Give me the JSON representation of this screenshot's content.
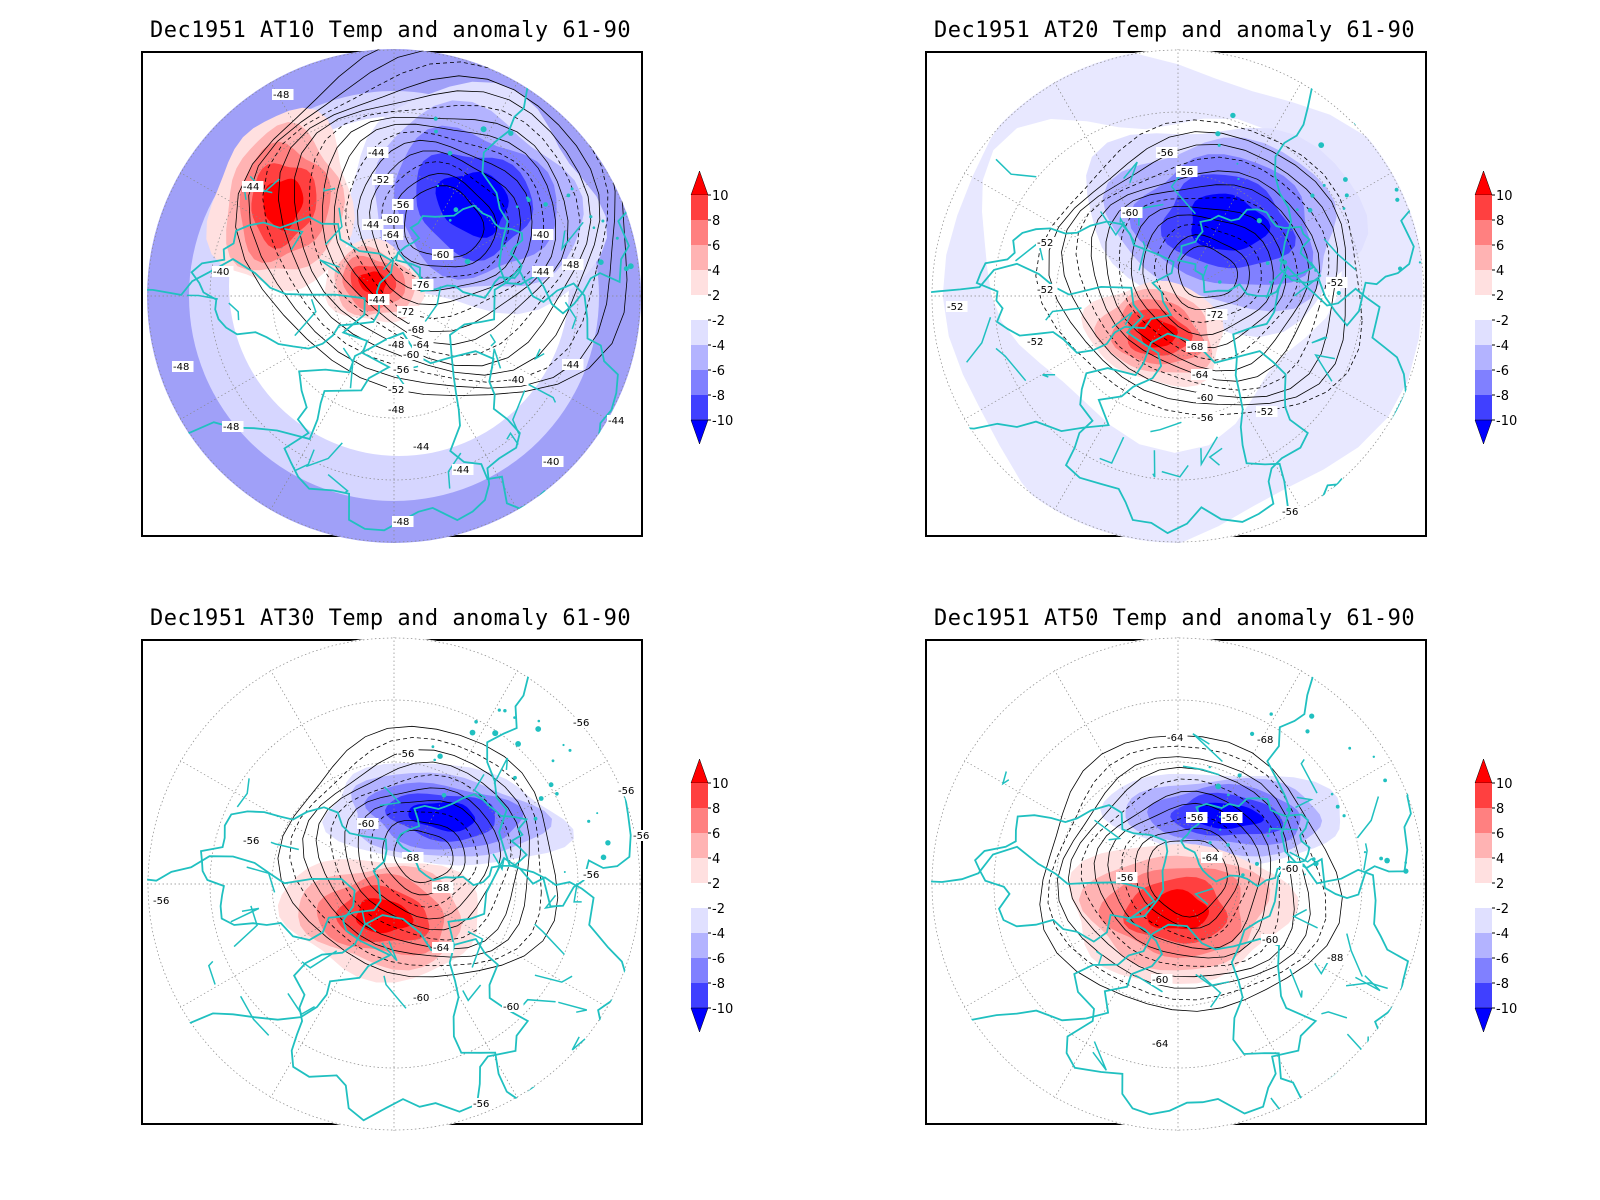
{
  "colors": {
    "coastline": "#20c0c0",
    "contour": "#000000",
    "grid": "#888888",
    "anom_pos": [
      "#ffe0e0",
      "#ffb3b3",
      "#ff8080",
      "#ff4040",
      "#ff0000"
    ],
    "anom_neg": [
      "#e0e0ff",
      "#b3b3ff",
      "#8080ff",
      "#4040ff",
      "#0000ff"
    ]
  },
  "colorbar": {
    "levels": [
      "10",
      "8",
      "6",
      "4",
      "2",
      "-2",
      "-4",
      "-6",
      "-8",
      "-10"
    ],
    "colors": [
      "#ff0000",
      "#ff4040",
      "#ff8080",
      "#ffb3b3",
      "#ffe0e0",
      "#ffffff",
      "#e0e0ff",
      "#b3b3ff",
      "#8080ff",
      "#4040ff",
      "#0000ff"
    ]
  },
  "panels": [
    {
      "title": "Dec1951 AT10 Temp and anomaly 61-90",
      "contour_labels": [
        "-48",
        "-44",
        "-44",
        "-44",
        "-40",
        "-44",
        "-48",
        "-52",
        "-56",
        "-60",
        "-64",
        "-60",
        "-76",
        "-72",
        "-68",
        "-64",
        "-60",
        "-56",
        "-52",
        "-48",
        "-44",
        "-40",
        "-44",
        "-48",
        "-44",
        "-40",
        "-40",
        "-44",
        "-48",
        "-48",
        "-48",
        "-44"
      ]
    },
    {
      "title": "Dec1951 AT20 Temp and anomaly 61-90",
      "contour_labels": [
        "-56",
        "-56",
        "-60",
        "-52",
        "-52",
        "-52",
        "-52",
        "-72",
        "-68",
        "-64",
        "-60",
        "-56",
        "-52",
        "-52",
        "-56"
      ]
    },
    {
      "title": "Dec1951 AT30 Temp and anomaly 61-90",
      "contour_labels": [
        "-56",
        "-56",
        "-56",
        "-60",
        "-56",
        "-56",
        "-56",
        "-68",
        "-68",
        "-64",
        "-60",
        "-60",
        "-56",
        "-56"
      ]
    },
    {
      "title": "Dec1951 AT50 Temp and anomaly 61-90",
      "contour_labels": [
        "-64",
        "-68",
        "-56",
        "-56",
        "-64",
        "-56",
        "-60",
        "-60",
        "-60",
        "-88",
        "-64"
      ]
    }
  ]
}
